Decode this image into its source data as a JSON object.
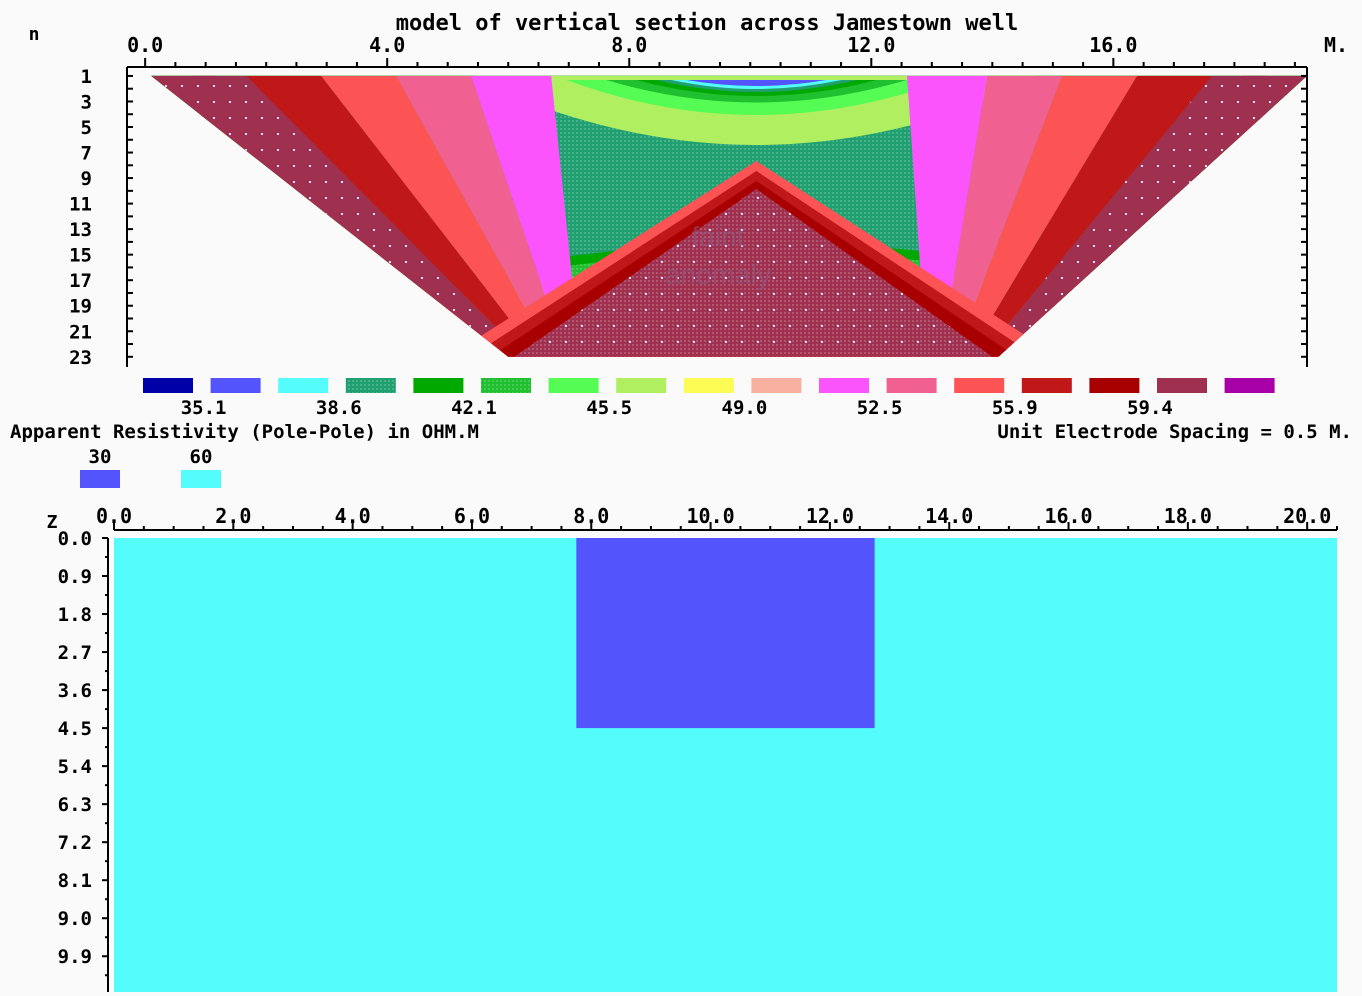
{
  "pseudosection": {
    "title": "model of vertical section across Jamestown well",
    "n_axis_label": "n",
    "x_unit_label": "M.",
    "annotation": [
      "faint",
      "anomaly"
    ],
    "caption_left": "Apparent Resistivity (Pole-Pole) in OHM.M",
    "caption_right": "Unit Electrode Spacing = 0.5 M."
  },
  "model": {
    "z_axis_label": "Z"
  },
  "colors": {
    "background": "#fafafa",
    "scale": [
      "#0000a8",
      "#5454fc",
      "#54fcfc",
      "#20a070",
      "#00a800",
      "#20c030",
      "#54fc54",
      "#b0f060",
      "#fcfc54",
      "#f8b0a0",
      "#fc54fc",
      "#f06090",
      "#fc5454",
      "#c01818",
      "#a80000",
      "#a03050",
      "#a800a8"
    ],
    "block_30": "#5454fc",
    "block_60": "#54fcfc"
  },
  "chart_data": [
    {
      "type": "heatmap",
      "title": "model of vertical section across Jamestown well",
      "xlabel": "M.",
      "ylabel": "n",
      "x_ticks": [
        "0.0",
        "4.0",
        "8.0",
        "12.0",
        "16.0"
      ],
      "x_tick_values": [
        0,
        4,
        8,
        12,
        16
      ],
      "xlim": [
        -0.3,
        19.2
      ],
      "y_ticks": [
        "1",
        "3",
        "5",
        "7",
        "9",
        "11",
        "13",
        "15",
        "17",
        "19",
        "21",
        "23"
      ],
      "y_tick_values": [
        1,
        3,
        5,
        7,
        9,
        11,
        13,
        15,
        17,
        19,
        21,
        23
      ],
      "ylim": [
        0.3,
        23.8
      ],
      "data_extent": {
        "x_top": [
          0.1,
          19.2
        ],
        "x_bottom": [
          6.0,
          14.1
        ],
        "n_top": 1,
        "n_bottom": 23
      },
      "anomaly_center_x": 10.1,
      "legend_labels": [
        "35.1",
        "38.6",
        "42.1",
        "45.5",
        "49.0",
        "52.5",
        "55.9",
        "59.4"
      ],
      "legend_label_positions": [
        1,
        3,
        5,
        7,
        9,
        11,
        13,
        15
      ],
      "legend_units": "OHM.M",
      "colorscale_count": 17
    },
    {
      "type": "heatmap",
      "xlabel": "",
      "ylabel": "Z",
      "x_ticks": [
        "0.0",
        "2.0",
        "4.0",
        "6.0",
        "8.0",
        "10.0",
        "12.0",
        "14.0",
        "16.0",
        "18.0",
        "20.0"
      ],
      "x_tick_values": [
        0,
        2,
        4,
        6,
        8,
        10,
        12,
        14,
        16,
        18,
        20
      ],
      "xlim": [
        0,
        20.5
      ],
      "y_ticks": [
        "0.0",
        "0.9",
        "1.8",
        "2.7",
        "3.6",
        "4.5",
        "5.4",
        "6.3",
        "7.2",
        "8.1",
        "9.0",
        "9.9"
      ],
      "y_tick_values": [
        0,
        0.9,
        1.8,
        2.7,
        3.6,
        4.5,
        5.4,
        6.3,
        7.2,
        8.1,
        9.0,
        9.9
      ],
      "ylim": [
        0,
        10.8
      ],
      "legend": [
        {
          "label": "30",
          "color": "#5454fc"
        },
        {
          "label": "60",
          "color": "#54fcfc"
        }
      ],
      "background_resistivity": "60",
      "blocks": [
        {
          "x": [
            7.75,
            12.75
          ],
          "z": [
            0,
            4.5
          ],
          "resistivity": "30"
        }
      ]
    }
  ]
}
